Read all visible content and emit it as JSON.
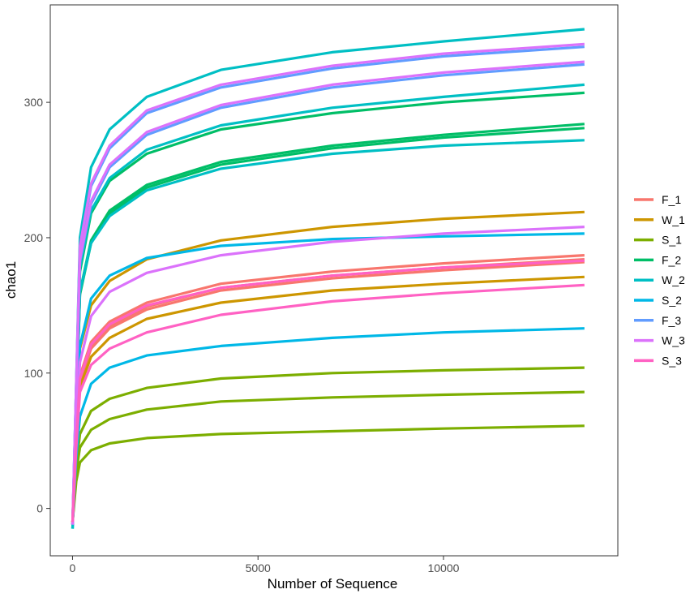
{
  "chart_data": {
    "type": "line",
    "title": "",
    "xlabel": "Number of Sequence",
    "ylabel": "chao1",
    "xlim": [
      -600,
      14700
    ],
    "ylim": [
      -35,
      372
    ],
    "xticks": [
      0,
      5000,
      10000
    ],
    "yticks": [
      0,
      100,
      200,
      300
    ],
    "grid": false,
    "legend_position": "right",
    "legend_title": "",
    "x": [
      0,
      100,
      200,
      500,
      1000,
      2000,
      4000,
      7000,
      10000,
      13800
    ],
    "series": [
      {
        "name": "F_1",
        "color": "#F8766D",
        "curves": [
          [
            -10,
            52,
            98,
            123,
            138,
            152,
            166,
            175,
            181,
            187
          ],
          [
            -10,
            50,
            96,
            120,
            135,
            149,
            163,
            172,
            178,
            184
          ],
          [
            -10,
            49,
            94,
            118,
            133,
            147,
            161,
            170,
            176,
            182
          ]
        ]
      },
      {
        "name": "W_1",
        "color": "#CD9600",
        "curves": [
          [
            -10,
            60,
            118,
            150,
            168,
            184,
            198,
            208,
            214,
            219
          ],
          [
            -10,
            46,
            90,
            112,
            126,
            140,
            152,
            161,
            166,
            171
          ]
        ]
      },
      {
        "name": "S_1",
        "color": "#7CAE00",
        "curves": [
          [
            -10,
            32,
            55,
            72,
            81,
            89,
            96,
            100,
            102,
            104
          ],
          [
            -10,
            27,
            45,
            58,
            66,
            73,
            79,
            82,
            84,
            86
          ],
          [
            -10,
            20,
            34,
            43,
            48,
            52,
            55,
            57,
            59,
            61
          ]
        ]
      },
      {
        "name": "F_2",
        "color": "#00BE67",
        "curves": [
          [
            -12,
            80,
            175,
            218,
            242,
            262,
            280,
            292,
            300,
            307
          ],
          [
            -12,
            74,
            160,
            198,
            220,
            239,
            256,
            268,
            276,
            284
          ],
          [
            -12,
            72,
            158,
            196,
            218,
            237,
            254,
            266,
            274,
            281
          ]
        ]
      },
      {
        "name": "W_2",
        "color": "#00BFC4",
        "curves": [
          [
            -15,
            92,
            200,
            252,
            280,
            304,
            324,
            337,
            345,
            354
          ],
          [
            -15,
            80,
            178,
            220,
            244,
            265,
            283,
            296,
            304,
            313
          ],
          [
            -15,
            72,
            160,
            196,
            216,
            235,
            251,
            262,
            268,
            272
          ]
        ]
      },
      {
        "name": "S_2",
        "color": "#00B8E7",
        "curves": [
          [
            -12,
            62,
            120,
            155,
            172,
            185,
            194,
            199,
            201,
            203
          ],
          [
            -12,
            38,
            68,
            92,
            104,
            113,
            120,
            126,
            130,
            133
          ]
        ]
      },
      {
        "name": "F_3",
        "color": "#619CFF",
        "curves": [
          [
            -12,
            90,
            192,
            238,
            266,
            292,
            311,
            325,
            334,
            341
          ],
          [
            -12,
            86,
            182,
            225,
            252,
            276,
            296,
            311,
            320,
            328
          ]
        ]
      },
      {
        "name": "W_3",
        "color": "#DB72FB",
        "curves": [
          [
            -12,
            91,
            194,
            240,
            268,
            294,
            313,
            327,
            336,
            343
          ],
          [
            -12,
            87,
            184,
            227,
            254,
            278,
            298,
            313,
            322,
            330
          ],
          [
            -12,
            55,
            108,
            142,
            160,
            174,
            187,
            197,
            203,
            208
          ]
        ]
      },
      {
        "name": "S_3",
        "color": "#FF61C3",
        "curves": [
          [
            -10,
            50,
            96,
            121,
            136,
            150,
            163,
            172,
            178,
            183
          ],
          [
            -10,
            45,
            86,
            106,
            118,
            130,
            143,
            153,
            159,
            165
          ]
        ]
      }
    ]
  }
}
